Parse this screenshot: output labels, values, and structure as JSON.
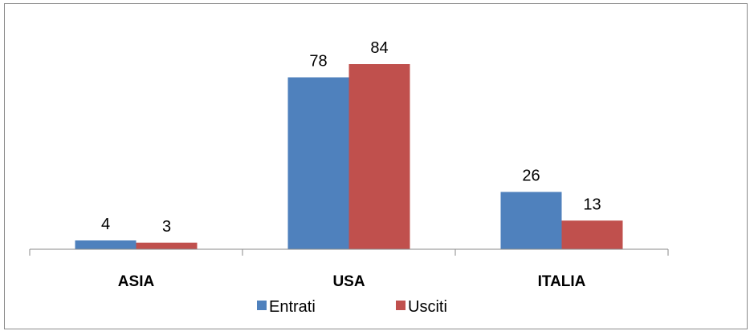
{
  "chart_data": {
    "type": "bar",
    "categories": [
      "ASIA",
      "USA",
      "ITALIA"
    ],
    "series": [
      {
        "name": "Entrati",
        "values": [
          4,
          78,
          26
        ],
        "color": "#4F81BD"
      },
      {
        "name": "Usciti",
        "values": [
          3,
          84,
          13
        ],
        "color": "#C0504D"
      }
    ],
    "ylim": [
      0,
      90
    ],
    "grid": false,
    "legend": "bottom",
    "data_labels": true
  }
}
